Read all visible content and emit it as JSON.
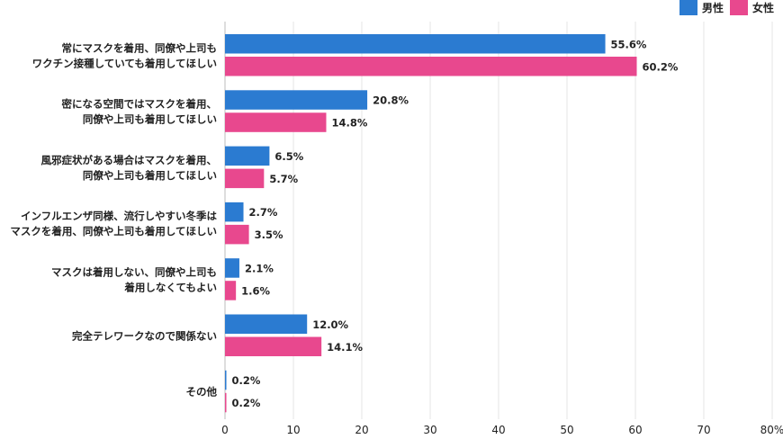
{
  "chart_data": {
    "type": "bar",
    "orientation": "horizontal",
    "categories": [
      [
        "常にマスクを着用、同僚や上司も",
        "ワクチン接種していても着用してほしい"
      ],
      [
        "密になる空間ではマスクを着用、",
        "同僚や上司も着用してほしい"
      ],
      [
        "風邪症状がある場合はマスクを着用、",
        "同僚や上司も着用してほしい"
      ],
      [
        "インフルエンザ同様、流行しやすい冬季は",
        "マスクを着用、同僚や上司も着用してほしい"
      ],
      [
        "マスクは着用しない、同僚や上司も",
        "着用しなくてもよい"
      ],
      [
        "完全テレワークなので関係ない"
      ],
      [
        "その他"
      ]
    ],
    "series": [
      {
        "name": "男性",
        "color": "#2b7bd1",
        "values": [
          55.6,
          20.8,
          6.5,
          2.7,
          2.1,
          12.0,
          0.2
        ],
        "labels": [
          "55.6%",
          "20.8%",
          "6.5%",
          "2.7%",
          "2.1%",
          "12.0%",
          "0.2%"
        ]
      },
      {
        "name": "女性",
        "color": "#e8488e",
        "values": [
          60.2,
          14.8,
          5.7,
          3.5,
          1.6,
          14.1,
          0.2
        ],
        "labels": [
          "60.2%",
          "14.8%",
          "5.7%",
          "3.5%",
          "1.6%",
          "14.1%",
          "0.2%"
        ]
      }
    ],
    "xlim": [
      0,
      80
    ],
    "xticks": [
      0,
      10,
      20,
      30,
      40,
      50,
      60,
      70,
      80
    ],
    "xtick_labels": [
      "0",
      "10",
      "20",
      "30",
      "40",
      "50",
      "60",
      "70",
      "80%"
    ],
    "grid": true,
    "legend_position": "top-right"
  }
}
